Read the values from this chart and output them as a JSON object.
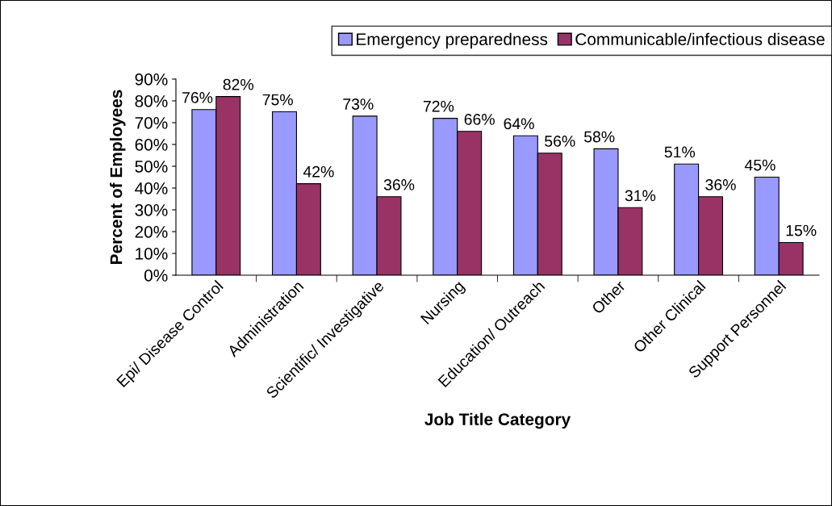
{
  "chart_data": {
    "type": "bar",
    "xlabel": "Job Title Category",
    "ylabel": "Percent of Employees",
    "categories": [
      "Epi/ Disease Control",
      "Administration",
      "Scientific/ Investigative",
      "Nursing",
      "Education/ Outreach",
      "Other",
      "Other Clinical",
      "Support Personnel"
    ],
    "series": [
      {
        "name": "Emergency preparedness",
        "color": "#9999ff",
        "values": [
          76,
          75,
          73,
          72,
          64,
          58,
          51,
          45
        ],
        "value_labels": [
          "76%",
          "75%",
          "73%",
          "72%",
          "64%",
          "58%",
          "51%",
          "45%"
        ]
      },
      {
        "name": "Communicable/infectious disease",
        "color": "#993366",
        "values": [
          82,
          42,
          36,
          66,
          56,
          31,
          36,
          15
        ],
        "value_labels": [
          "82%",
          "42%",
          "36%",
          "66%",
          "56%",
          "31%",
          "36%",
          "15%"
        ]
      }
    ],
    "ylim": [
      0,
      90
    ],
    "yticks": [
      {
        "value": 0,
        "label": "0%"
      },
      {
        "value": 10,
        "label": "10%"
      },
      {
        "value": 20,
        "label": "20%"
      },
      {
        "value": 30,
        "label": "30%"
      },
      {
        "value": 40,
        "label": "40%"
      },
      {
        "value": 50,
        "label": "50%"
      },
      {
        "value": 60,
        "label": "60%"
      },
      {
        "value": 70,
        "label": "70%"
      },
      {
        "value": 80,
        "label": "80%"
      },
      {
        "value": 90,
        "label": "90%"
      }
    ],
    "grid": false,
    "legend": "top right"
  }
}
